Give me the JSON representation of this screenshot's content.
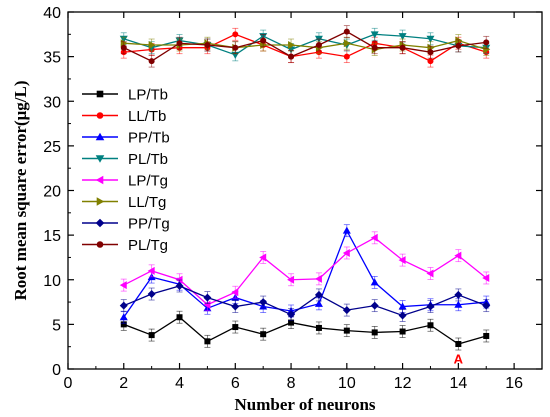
{
  "chart_data": {
    "type": "line",
    "xlabel": "Number of neurons",
    "ylabel": "Root mean square error(μg/L)",
    "xlim": [
      0,
      17
    ],
    "ylim": [
      0,
      40
    ],
    "xticks": [
      0,
      2,
      4,
      6,
      8,
      10,
      12,
      14,
      16
    ],
    "yticks": [
      0,
      5,
      10,
      15,
      20,
      25,
      30,
      35,
      40
    ],
    "x": [
      2,
      3,
      4,
      5,
      6,
      7,
      8,
      9,
      10,
      11,
      12,
      13,
      14,
      15
    ],
    "legend_position": "left",
    "series": [
      {
        "name": "LP/Tb",
        "color": "#000000",
        "marker": "square",
        "values": [
          5.0,
          3.8,
          5.8,
          3.1,
          4.7,
          3.9,
          5.2,
          4.6,
          4.3,
          4.1,
          4.2,
          4.9,
          2.8,
          3.7
        ]
      },
      {
        "name": "LL/Tb",
        "color": "#ff0000",
        "marker": "circle",
        "values": [
          35.5,
          35.8,
          36.0,
          36.0,
          37.5,
          36.3,
          35.0,
          35.5,
          35.0,
          36.5,
          36.0,
          34.5,
          36.5,
          35.5
        ]
      },
      {
        "name": "PP/Tb",
        "color": "#0000ff",
        "marker": "triangle-up",
        "values": [
          5.8,
          10.3,
          9.5,
          6.8,
          8.0,
          7.0,
          6.5,
          7.3,
          15.5,
          9.7,
          7.0,
          7.2,
          7.2,
          7.5
        ]
      },
      {
        "name": "PL/Tb",
        "color": "#008080",
        "marker": "triangle-down",
        "values": [
          37.0,
          36.0,
          36.8,
          36.3,
          35.2,
          37.3,
          35.8,
          37.0,
          36.3,
          37.5,
          37.3,
          37.0,
          36.2,
          36.0
        ]
      },
      {
        "name": "LP/Tg",
        "color": "#ff00ff",
        "marker": "triangle-left",
        "values": [
          9.4,
          11.0,
          10.0,
          7.2,
          8.6,
          12.5,
          10.0,
          10.1,
          13.0,
          14.7,
          12.2,
          10.7,
          12.7,
          10.2
        ]
      },
      {
        "name": "LL/Tg",
        "color": "#808000",
        "marker": "triangle-right",
        "values": [
          36.5,
          36.3,
          36.3,
          36.5,
          36.0,
          36.3,
          36.3,
          36.0,
          36.5,
          35.8,
          36.3,
          36.0,
          36.8,
          35.8
        ]
      },
      {
        "name": "PP/Tg",
        "color": "#00008b",
        "marker": "diamond",
        "values": [
          7.1,
          8.4,
          9.3,
          8.0,
          7.0,
          7.5,
          6.1,
          8.3,
          6.6,
          7.1,
          6.0,
          7.0,
          8.3,
          7.1
        ]
      },
      {
        "name": "PL/Tg",
        "color": "#800000",
        "marker": "circle",
        "values": [
          36.0,
          34.5,
          36.5,
          36.3,
          36.0,
          36.8,
          35.0,
          36.3,
          37.8,
          36.0,
          36.0,
          35.5,
          36.2,
          36.6
        ]
      }
    ],
    "annotations": [
      {
        "text": "A",
        "x": 14,
        "y": 1.2,
        "color": "#ff0000"
      }
    ]
  }
}
